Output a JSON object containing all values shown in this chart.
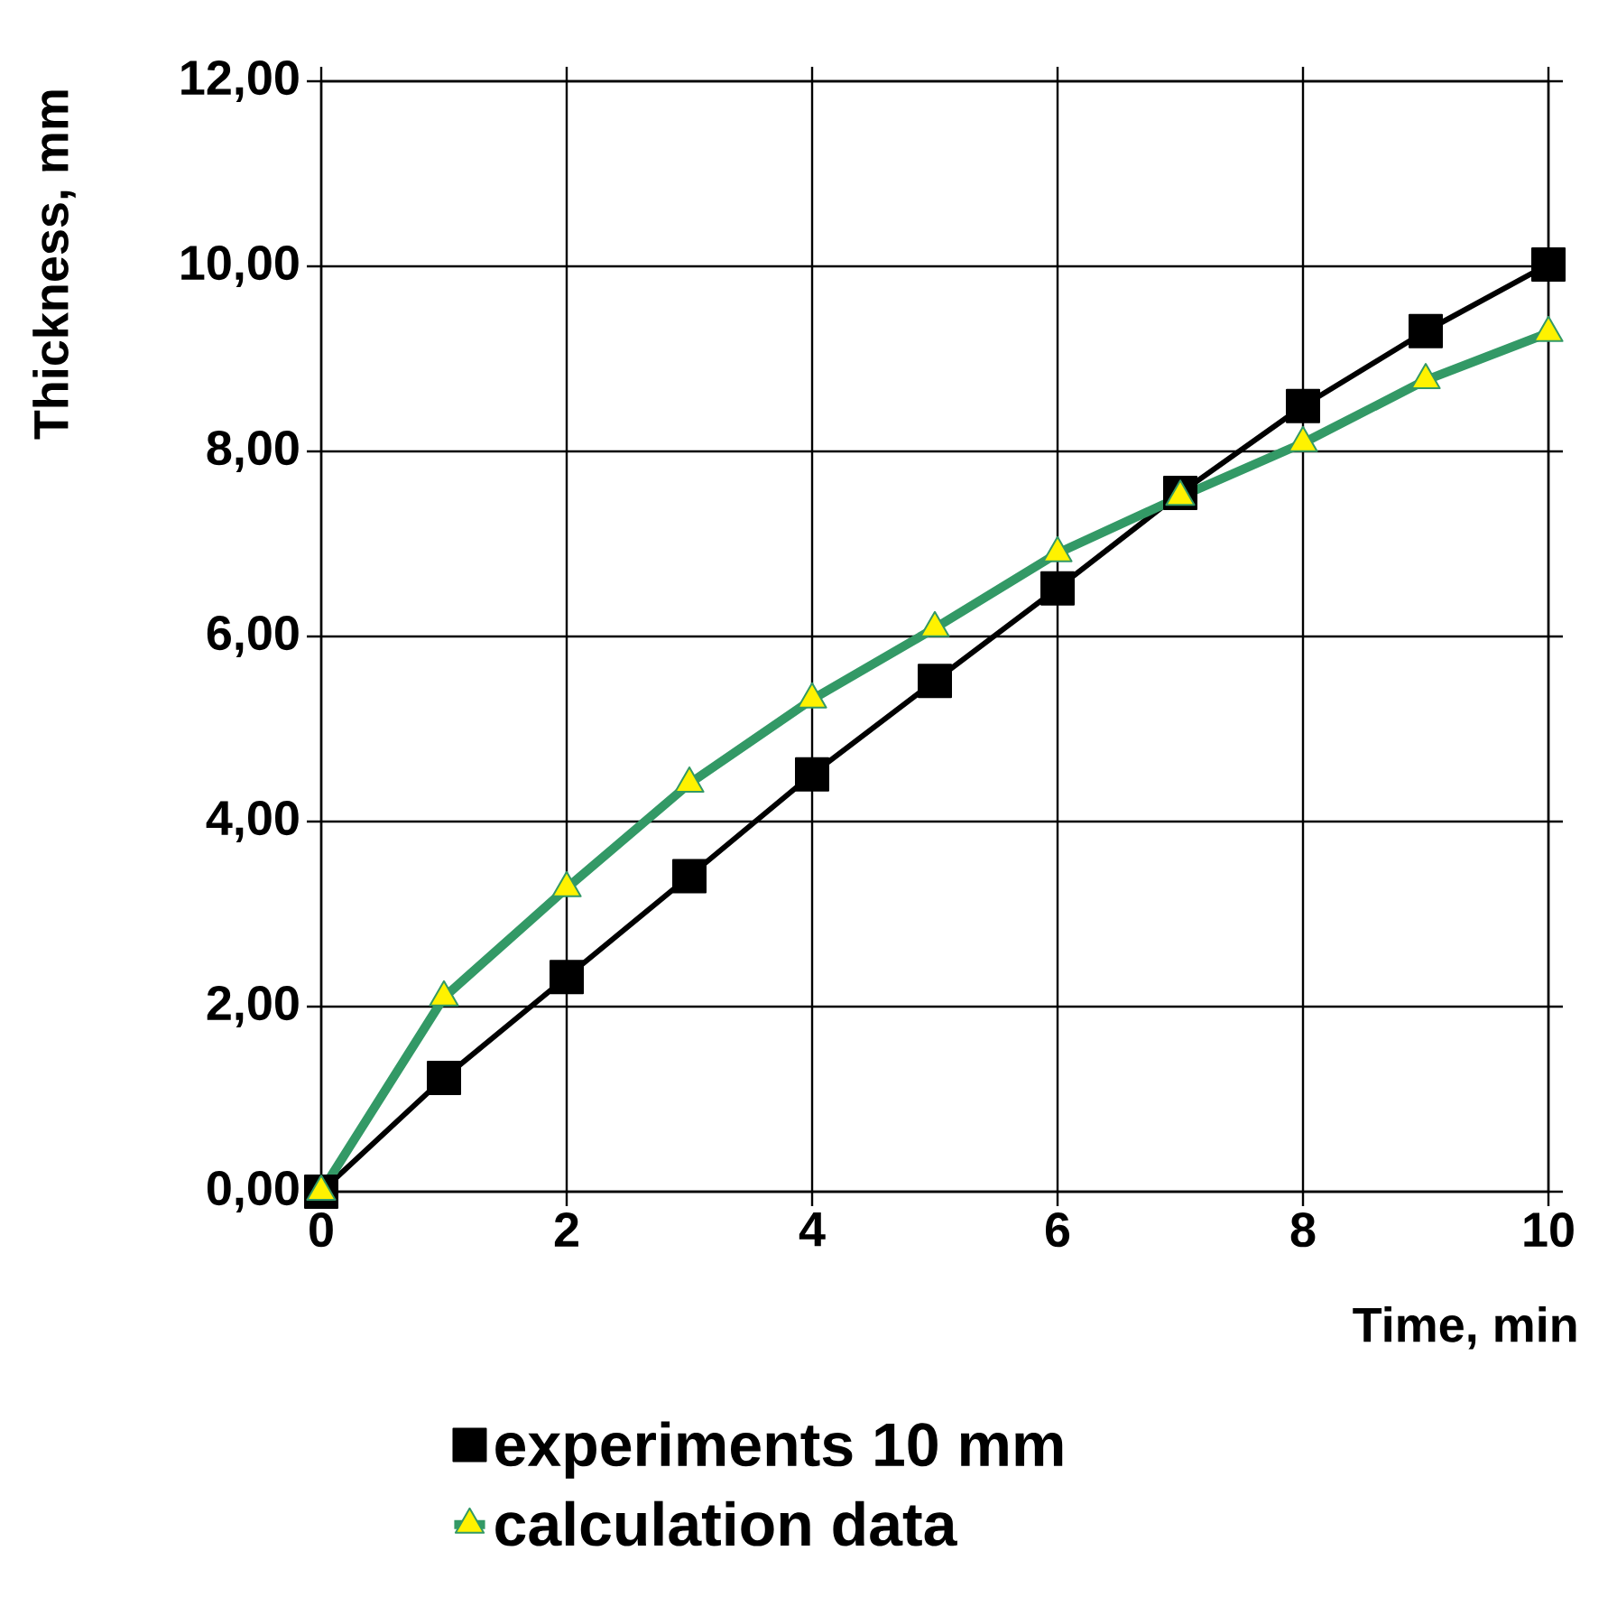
{
  "chart_data": {
    "type": "line",
    "xlabel": "Time, min",
    "ylabel": "Thickness, mm",
    "x": [
      0,
      1,
      2,
      3,
      4,
      5,
      6,
      7,
      8,
      9,
      10
    ],
    "series": [
      {
        "name": "experiments 10 mm",
        "color": "#000000",
        "marker": "square",
        "values": [
          0,
          1.23,
          2.32,
          3.41,
          4.51,
          5.52,
          6.52,
          7.55,
          8.49,
          9.3,
          10.02
        ]
      },
      {
        "name": "calculation data",
        "color": "#339966",
        "marker": "triangle",
        "values": [
          0,
          2.1,
          3.28,
          4.41,
          5.32,
          6.09,
          6.9,
          7.51,
          8.09,
          8.77,
          9.28
        ]
      }
    ],
    "xlim": [
      0,
      10
    ],
    "ylim": [
      0,
      12
    ],
    "xticks": [
      0,
      2,
      4,
      6,
      8,
      10
    ],
    "yticks": [
      {
        "value": 0,
        "label": "0,00"
      },
      {
        "value": 2,
        "label": "2,00"
      },
      {
        "value": 4,
        "label": "4,00"
      },
      {
        "value": 6,
        "label": "6,00"
      },
      {
        "value": 8,
        "label": "8,00"
      },
      {
        "value": 10,
        "label": "10,00"
      },
      {
        "value": 12,
        "label": "12,00"
      }
    ],
    "grid": true,
    "legend": "bottom"
  }
}
